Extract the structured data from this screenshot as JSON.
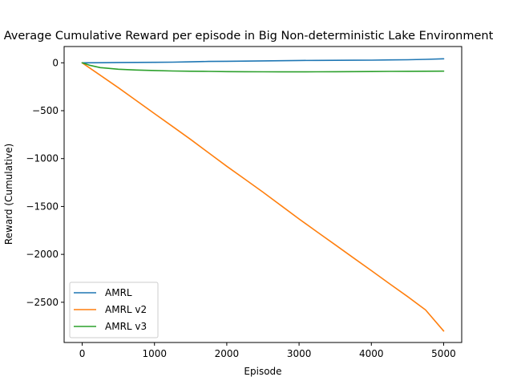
{
  "chart_data": {
    "type": "line",
    "title": "Average Cumulative Reward per episode in Big Non-deterministic Lake Environment",
    "xlabel": "Episode",
    "ylabel": "Reward (Cumulative)",
    "xlim": [
      -250,
      5250
    ],
    "ylim": [
      -2920,
      170
    ],
    "xticks": [
      0,
      1000,
      2000,
      3000,
      4000,
      5000
    ],
    "yticks": [
      0,
      -500,
      -1000,
      -1500,
      -2000,
      -2500
    ],
    "ytick_labels": [
      "0",
      "−500",
      "−1000",
      "−1500",
      "−2000",
      "−2500"
    ],
    "xtick_labels": [
      "0",
      "1000",
      "2000",
      "3000",
      "4000",
      "5000"
    ],
    "legend_position": "lower-left",
    "grid": false,
    "series": [
      {
        "name": "AMRL",
        "color": "#1f77b4",
        "x": [
          0,
          250,
          500,
          750,
          1000,
          1250,
          1500,
          1750,
          2000,
          2250,
          2500,
          2750,
          3000,
          3250,
          3500,
          3750,
          4000,
          4250,
          4500,
          4750,
          5000
        ],
        "y": [
          0,
          1,
          3,
          4,
          5,
          7,
          10,
          14,
          16,
          18,
          20,
          22,
          24,
          25,
          26,
          27,
          28,
          30,
          32,
          36,
          42
        ]
      },
      {
        "name": "AMRL v2",
        "color": "#ff7f0e",
        "x": [
          0,
          250,
          500,
          750,
          1000,
          1250,
          1500,
          1750,
          2000,
          2250,
          2500,
          2750,
          3000,
          3250,
          3500,
          3750,
          4000,
          4250,
          4500,
          4750,
          5000
        ],
        "y": [
          0,
          -130,
          -260,
          -395,
          -530,
          -665,
          -800,
          -940,
          -1080,
          -1215,
          -1350,
          -1490,
          -1630,
          -1765,
          -1900,
          -2035,
          -2170,
          -2305,
          -2440,
          -2580,
          -2800
        ]
      },
      {
        "name": "AMRL v3",
        "color": "#2ca02c",
        "x": [
          0,
          100,
          250,
          500,
          750,
          1000,
          1250,
          1500,
          1750,
          2000,
          2250,
          2500,
          2750,
          3000,
          3250,
          3500,
          3750,
          4000,
          4250,
          4500,
          4750,
          5000
        ],
        "y": [
          0,
          -25,
          -50,
          -67,
          -75,
          -80,
          -85,
          -88,
          -90,
          -92,
          -93,
          -94,
          -95,
          -95,
          -94,
          -93,
          -92,
          -91,
          -90,
          -89,
          -88,
          -87
        ]
      }
    ]
  }
}
